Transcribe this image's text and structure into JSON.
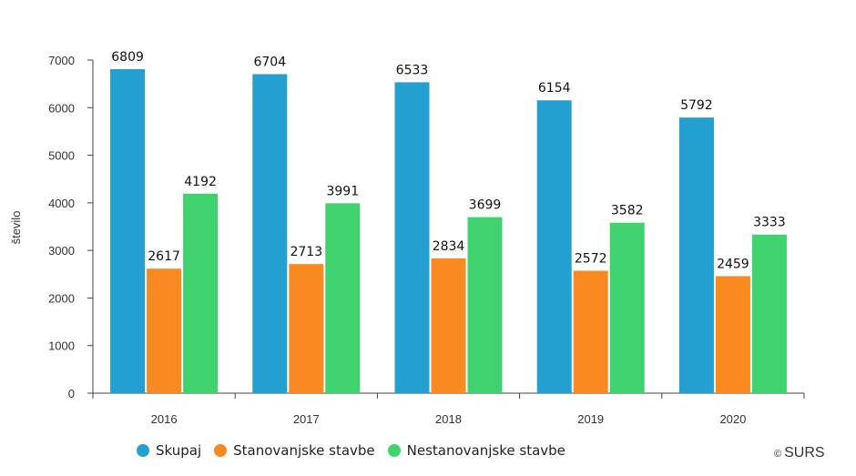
{
  "chart_data": {
    "type": "bar",
    "title": "",
    "xlabel": "",
    "ylabel": "število",
    "ylim": [
      0,
      7000
    ],
    "yticks": [
      0,
      1000,
      2000,
      3000,
      4000,
      5000,
      6000,
      7000
    ],
    "grid": false,
    "legend_position": "bottom",
    "categories": [
      "2016",
      "2017",
      "2018",
      "2019",
      "2020"
    ],
    "series": [
      {
        "name": "Skupaj",
        "color": "#23a0d1",
        "values": [
          6809,
          6704,
          6533,
          6154,
          5792
        ]
      },
      {
        "name": "Stanovanjske stavbe",
        "color": "#f88a21",
        "values": [
          2617,
          2713,
          2834,
          2572,
          2459
        ]
      },
      {
        "name": "Nestanovanjske stavbe",
        "color": "#40d26f",
        "values": [
          4192,
          3991,
          3699,
          3582,
          3333
        ]
      }
    ]
  },
  "legend": {
    "items": [
      {
        "label": "Skupaj",
        "color": "#23a0d1"
      },
      {
        "label": "Stanovanjske stavbe",
        "color": "#f88a21"
      },
      {
        "label": "Nestanovanjske stavbe",
        "color": "#40d26f"
      }
    ]
  },
  "credit": {
    "symbol": "©",
    "text": "SURS"
  }
}
